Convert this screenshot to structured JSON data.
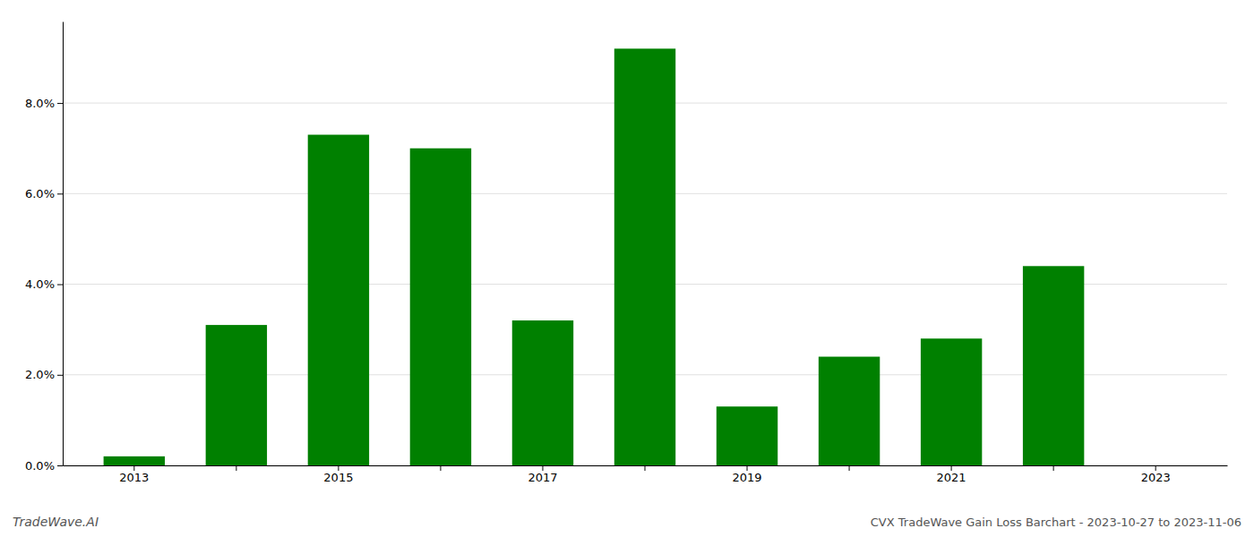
{
  "chart_data": {
    "type": "bar",
    "title": "CVX TradeWave Gain Loss Barchart - 2023-10-27 to 2023-11-06",
    "annotations": [
      "TradeWave.AI"
    ],
    "categories": [
      "2013",
      null,
      "2015",
      null,
      "2017",
      null,
      "2019",
      null,
      "2021",
      null,
      "2023"
    ],
    "values": [
      0.002,
      0.031,
      0.073,
      0.07,
      0.032,
      0.092,
      0.013,
      0.024,
      0.028,
      0.044,
      0.0
    ],
    "color": "#008000",
    "ylim": [
      0,
      0.098
    ],
    "yticks": [
      {
        "value": 0.0,
        "label": "0.0%"
      },
      {
        "value": 0.02,
        "label": "2.0%"
      },
      {
        "value": 0.04,
        "label": "4.0%"
      },
      {
        "value": 0.06,
        "label": "6.0%"
      },
      {
        "value": 0.08,
        "label": "8.0%"
      }
    ],
    "grid": true
  }
}
